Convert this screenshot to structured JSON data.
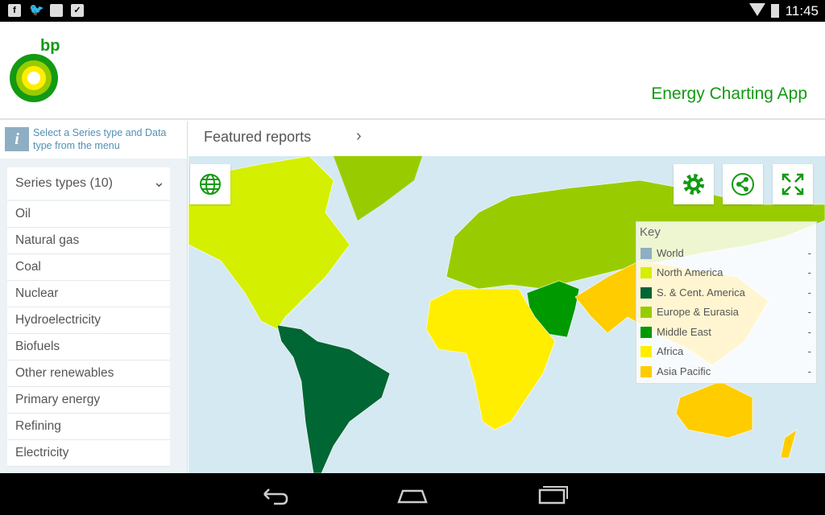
{
  "status_bar": {
    "time": "11:45",
    "icons": [
      "facebook-icon",
      "twitter-icon",
      "image-icon",
      "briefcase-icon",
      "wifi-icon",
      "battery-icon"
    ]
  },
  "header": {
    "logo_text": "bp",
    "app_title": "Energy Charting App"
  },
  "sidebar": {
    "info_text": "Select a Series type and Data type from the menu",
    "dropdown_label": "Series types (10)",
    "items": [
      {
        "label": "Oil"
      },
      {
        "label": "Natural gas"
      },
      {
        "label": "Coal"
      },
      {
        "label": "Nuclear"
      },
      {
        "label": "Hydroelectricity"
      },
      {
        "label": "Biofuels"
      },
      {
        "label": "Other renewables"
      },
      {
        "label": "Primary energy"
      },
      {
        "label": "Refining"
      },
      {
        "label": "Electricity"
      }
    ]
  },
  "featured": {
    "label": "Featured reports"
  },
  "map": {
    "buttons": [
      "globe-icon",
      "settings-icon",
      "share-icon",
      "fullscreen-icon"
    ],
    "key": {
      "title": "Key",
      "rows": [
        {
          "label": "World",
          "value": "-",
          "color": "#8eaec3"
        },
        {
          "label": "North America",
          "value": "-",
          "color": "#d4ef00"
        },
        {
          "label": "S. & Cent. America",
          "value": "-",
          "color": "#006633"
        },
        {
          "label": "Europe & Eurasia",
          "value": "-",
          "color": "#99cc00"
        },
        {
          "label": "Middle East",
          "value": "-",
          "color": "#009900"
        },
        {
          "label": "Africa",
          "value": "-",
          "color": "#ffee00"
        },
        {
          "label": "Asia Pacific",
          "value": "-",
          "color": "#ffcc00"
        }
      ]
    }
  }
}
